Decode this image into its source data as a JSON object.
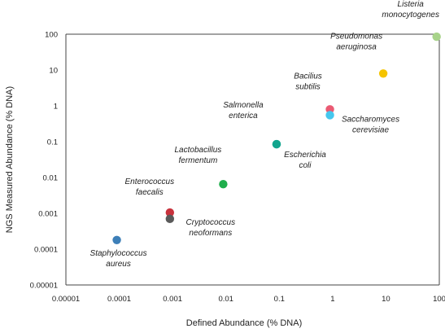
{
  "chart_data": {
    "type": "scatter",
    "title": "",
    "xlabel": "Defined Abundance (% DNA)",
    "ylabel": "NGS Measured Abundance (% DNA)",
    "xscale": "log",
    "yscale": "log",
    "xlim": [
      1e-05,
      100
    ],
    "ylim": [
      1e-05,
      100
    ],
    "x_ticks": [
      "0.00001",
      "0.0001",
      "0.001",
      "0.01",
      "0.1",
      "1",
      "10",
      "100"
    ],
    "y_ticks": [
      "0.00001",
      "0.0001",
      "0.001",
      "0.01",
      "0.1",
      "1",
      "10",
      "100"
    ],
    "grid": false,
    "legend": false,
    "points": [
      {
        "label": [
          "Staphylococcus",
          "aureus"
        ],
        "x": 9e-05,
        "y": 0.00018,
        "color": "#3d7fb8"
      },
      {
        "label": [
          "Enterococcus",
          "faecalis"
        ],
        "x": 0.00089,
        "y": 0.00105,
        "color": "#c8323c"
      },
      {
        "label": [
          "Cryptococcus",
          "neoformans"
        ],
        "x": 0.00089,
        "y": 0.0007,
        "color": "#5a5a5a"
      },
      {
        "label": [
          "Lactobacillus",
          "fermentum"
        ],
        "x": 0.0089,
        "y": 0.0065,
        "color": "#1fae4c"
      },
      {
        "label": [
          "Salmonella",
          "enterica"
        ],
        "x": 0.089,
        "y": 0.085,
        "color": "#12a58e"
      },
      {
        "label": [
          "Escherichia",
          "coli"
        ],
        "x": 0.089,
        "y": 0.085,
        "color": "#12a58e"
      },
      {
        "label": [
          "Bacilius",
          "subtilis"
        ],
        "x": 0.89,
        "y": 0.8,
        "color": "#ea5a73"
      },
      {
        "label": [
          "Saccharomyces",
          "cerevisiae"
        ],
        "x": 0.89,
        "y": 0.55,
        "color": "#45c7ee"
      },
      {
        "label": [
          "Pseudomonas",
          "aeruginosa"
        ],
        "x": 8.9,
        "y": 8.0,
        "color": "#f5c400"
      },
      {
        "label": [
          "Listeria",
          "monocytogenes"
        ],
        "x": 89,
        "y": 85,
        "color": "#a8d38a"
      }
    ]
  }
}
